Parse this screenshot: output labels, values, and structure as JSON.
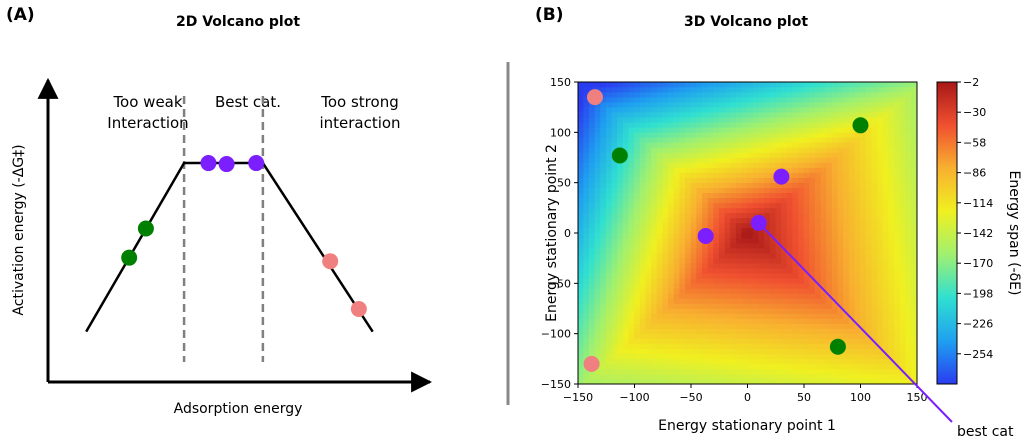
{
  "panels": {
    "left_label": "(A)",
    "right_label": "(B)"
  },
  "chart_data": [
    {
      "type": "line",
      "title": "2D Volcano plot",
      "xlabel": "Adsorption energy",
      "ylabel": "Activation energy (-ΔG‡)",
      "regions": [
        {
          "lines": [
            "Too weak",
            "Interaction"
          ]
        },
        {
          "lines": [
            "Best cat."
          ]
        },
        {
          "lines": [
            "Too strong",
            "interaction"
          ]
        }
      ],
      "volcano_line": [
        [
          0.8,
          1.0
        ],
        [
          2.85,
          4.35
        ],
        [
          4.5,
          4.35
        ],
        [
          6.8,
          1.0
        ]
      ],
      "dividers_x": [
        2.85,
        4.5
      ],
      "points": [
        {
          "x": 1.7,
          "y": 2.47,
          "color": "#008000"
        },
        {
          "x": 2.05,
          "y": 3.05,
          "color": "#008000"
        },
        {
          "x": 3.36,
          "y": 4.35,
          "color": "#7b1fff"
        },
        {
          "x": 3.74,
          "y": 4.33,
          "color": "#7b1fff"
        },
        {
          "x": 4.36,
          "y": 4.35,
          "color": "#7b1fff"
        },
        {
          "x": 5.91,
          "y": 2.4,
          "color": "#f08080"
        },
        {
          "x": 6.51,
          "y": 1.45,
          "color": "#f08080"
        }
      ],
      "grid": false
    },
    {
      "type": "heatmap",
      "title": "3D Volcano plot",
      "xlabel": "Energy stationary point 1",
      "ylabel": "Energy stationary point 2",
      "xlim": [
        -150,
        150
      ],
      "ylim": [
        -150,
        150
      ],
      "xticks": [
        -150,
        -100,
        -50,
        0,
        50,
        100,
        150
      ],
      "yticks": [
        -150,
        -100,
        -50,
        0,
        50,
        100,
        150
      ],
      "colorbar": {
        "label": "Energy span (-δE)",
        "range": [
          -282,
          -2
        ],
        "ticks": [
          -2,
          -30,
          -58,
          -86,
          -114,
          -142,
          -170,
          -198,
          -226,
          -254
        ],
        "colors": [
          "#2a3cf0",
          "#1fa0f0",
          "#30e0d0",
          "#a0f070",
          "#f0f020",
          "#f8b030",
          "#f05030",
          "#a81818"
        ]
      },
      "points": [
        {
          "x": -135,
          "y": 135,
          "color": "#f08080"
        },
        {
          "x": -113,
          "y": 77,
          "color": "#008000"
        },
        {
          "x": 100,
          "y": 107,
          "color": "#008000"
        },
        {
          "x": 30,
          "y": 56,
          "color": "#7b1fff"
        },
        {
          "x": -37,
          "y": -3,
          "color": "#7b1fff"
        },
        {
          "x": 10,
          "y": 10,
          "color": "#7b1fff"
        },
        {
          "x": 80,
          "y": -113,
          "color": "#008000"
        },
        {
          "x": -138,
          "y": -130,
          "color": "#f08080"
        }
      ],
      "annotation": {
        "text": "best cat",
        "color": "#7b1fff",
        "point": [
          10,
          10
        ]
      },
      "grid": false,
      "legend": "none"
    }
  ]
}
